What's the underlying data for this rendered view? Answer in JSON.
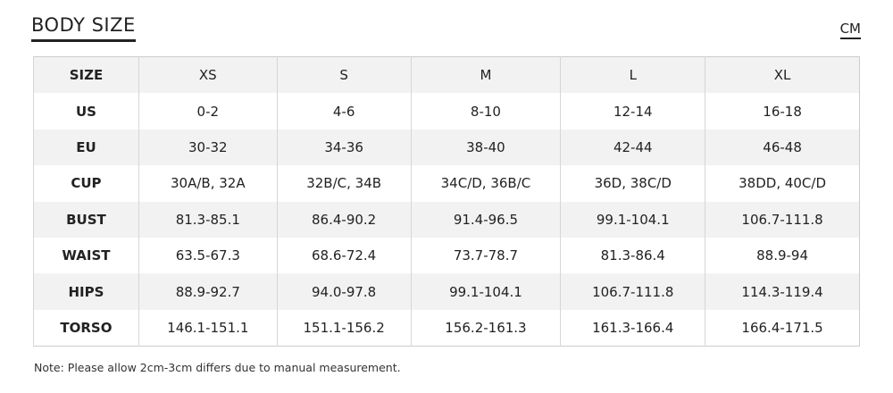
{
  "header": {
    "title": "BODY SIZE",
    "unit": "CM"
  },
  "table": {
    "columns": [
      "SIZE",
      "XS",
      "S",
      "M",
      "L",
      "XL"
    ],
    "rows": [
      [
        "US",
        "0-2",
        "4-6",
        "8-10",
        "12-14",
        "16-18"
      ],
      [
        "EU",
        "30-32",
        "34-36",
        "38-40",
        "42-44",
        "46-48"
      ],
      [
        "CUP",
        "30A/B, 32A",
        "32B/C, 34B",
        "34C/D, 36B/C",
        "36D, 38C/D",
        "38DD, 40C/D"
      ],
      [
        "BUST",
        "81.3-85.1",
        "86.4-90.2",
        "91.4-96.5",
        "99.1-104.1",
        "106.7-111.8"
      ],
      [
        "WAIST",
        "63.5-67.3",
        "68.6-72.4",
        "73.7-78.7",
        "81.3-86.4",
        "88.9-94"
      ],
      [
        "HIPS",
        "88.9-92.7",
        "94.0-97.8",
        "99.1-104.1",
        "106.7-111.8",
        "114.3-119.4"
      ],
      [
        "TORSO",
        "146.1-151.1",
        "151.1-156.2",
        "156.2-161.3",
        "161.3-166.4",
        "166.4-171.5"
      ]
    ]
  },
  "note": "Note: Please allow 2cm-3cm differs due to manual measurement."
}
